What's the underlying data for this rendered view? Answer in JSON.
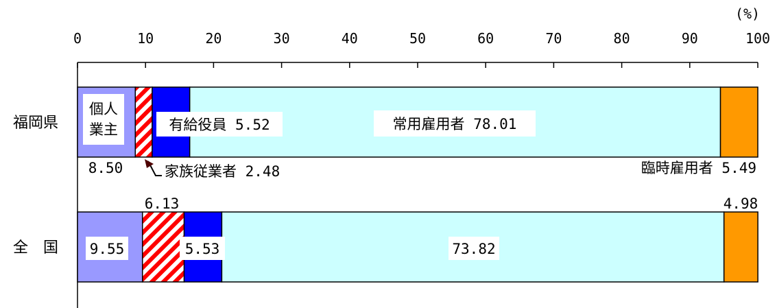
{
  "chart_data": {
    "type": "bar",
    "orientation": "horizontal",
    "stacked": true,
    "unit_label": "(%)",
    "xlim": [
      0,
      100
    ],
    "x_ticks": [
      "0",
      "10",
      "20",
      "30",
      "40",
      "50",
      "60",
      "70",
      "80",
      "90",
      "100"
    ],
    "categories": [
      "福岡県",
      "全　国"
    ],
    "series": [
      {
        "name": "個人業主",
        "name_lines": [
          "個人",
          "業主"
        ],
        "values": [
          8.5,
          9.55
        ],
        "labels": [
          "8.50",
          "9.55"
        ],
        "color": "#9999ff"
      },
      {
        "name": "家族従業者",
        "values": [
          2.48,
          6.13
        ],
        "labels": [
          "2.48",
          "6.13"
        ],
        "color": "#ff0000",
        "pattern": "diagonal-hatch"
      },
      {
        "name": "有給役員",
        "values": [
          5.52,
          5.53
        ],
        "labels": [
          "5.52",
          "5.53"
        ],
        "color": "#0000ff"
      },
      {
        "name": "常用雇用者",
        "values": [
          78.01,
          73.82
        ],
        "labels": [
          "78.01",
          "73.82"
        ],
        "color": "#ccffff"
      },
      {
        "name": "臨時雇用者",
        "values": [
          5.49,
          4.98
        ],
        "labels": [
          "5.49",
          "4.98"
        ],
        "color": "#ff9900"
      }
    ],
    "annotations": {
      "pref_owner_value": "8.50",
      "pref_family": "家族従業者 2.48",
      "pref_officer": "有給役員 5.52",
      "pref_regular": "常用雇用者 78.01",
      "pref_temp": "臨時雇用者 5.49",
      "nat_owner": "9.55",
      "nat_family": "6.13",
      "nat_officer": "5.53",
      "nat_regular": "73.82",
      "nat_temp": "4.98"
    }
  }
}
